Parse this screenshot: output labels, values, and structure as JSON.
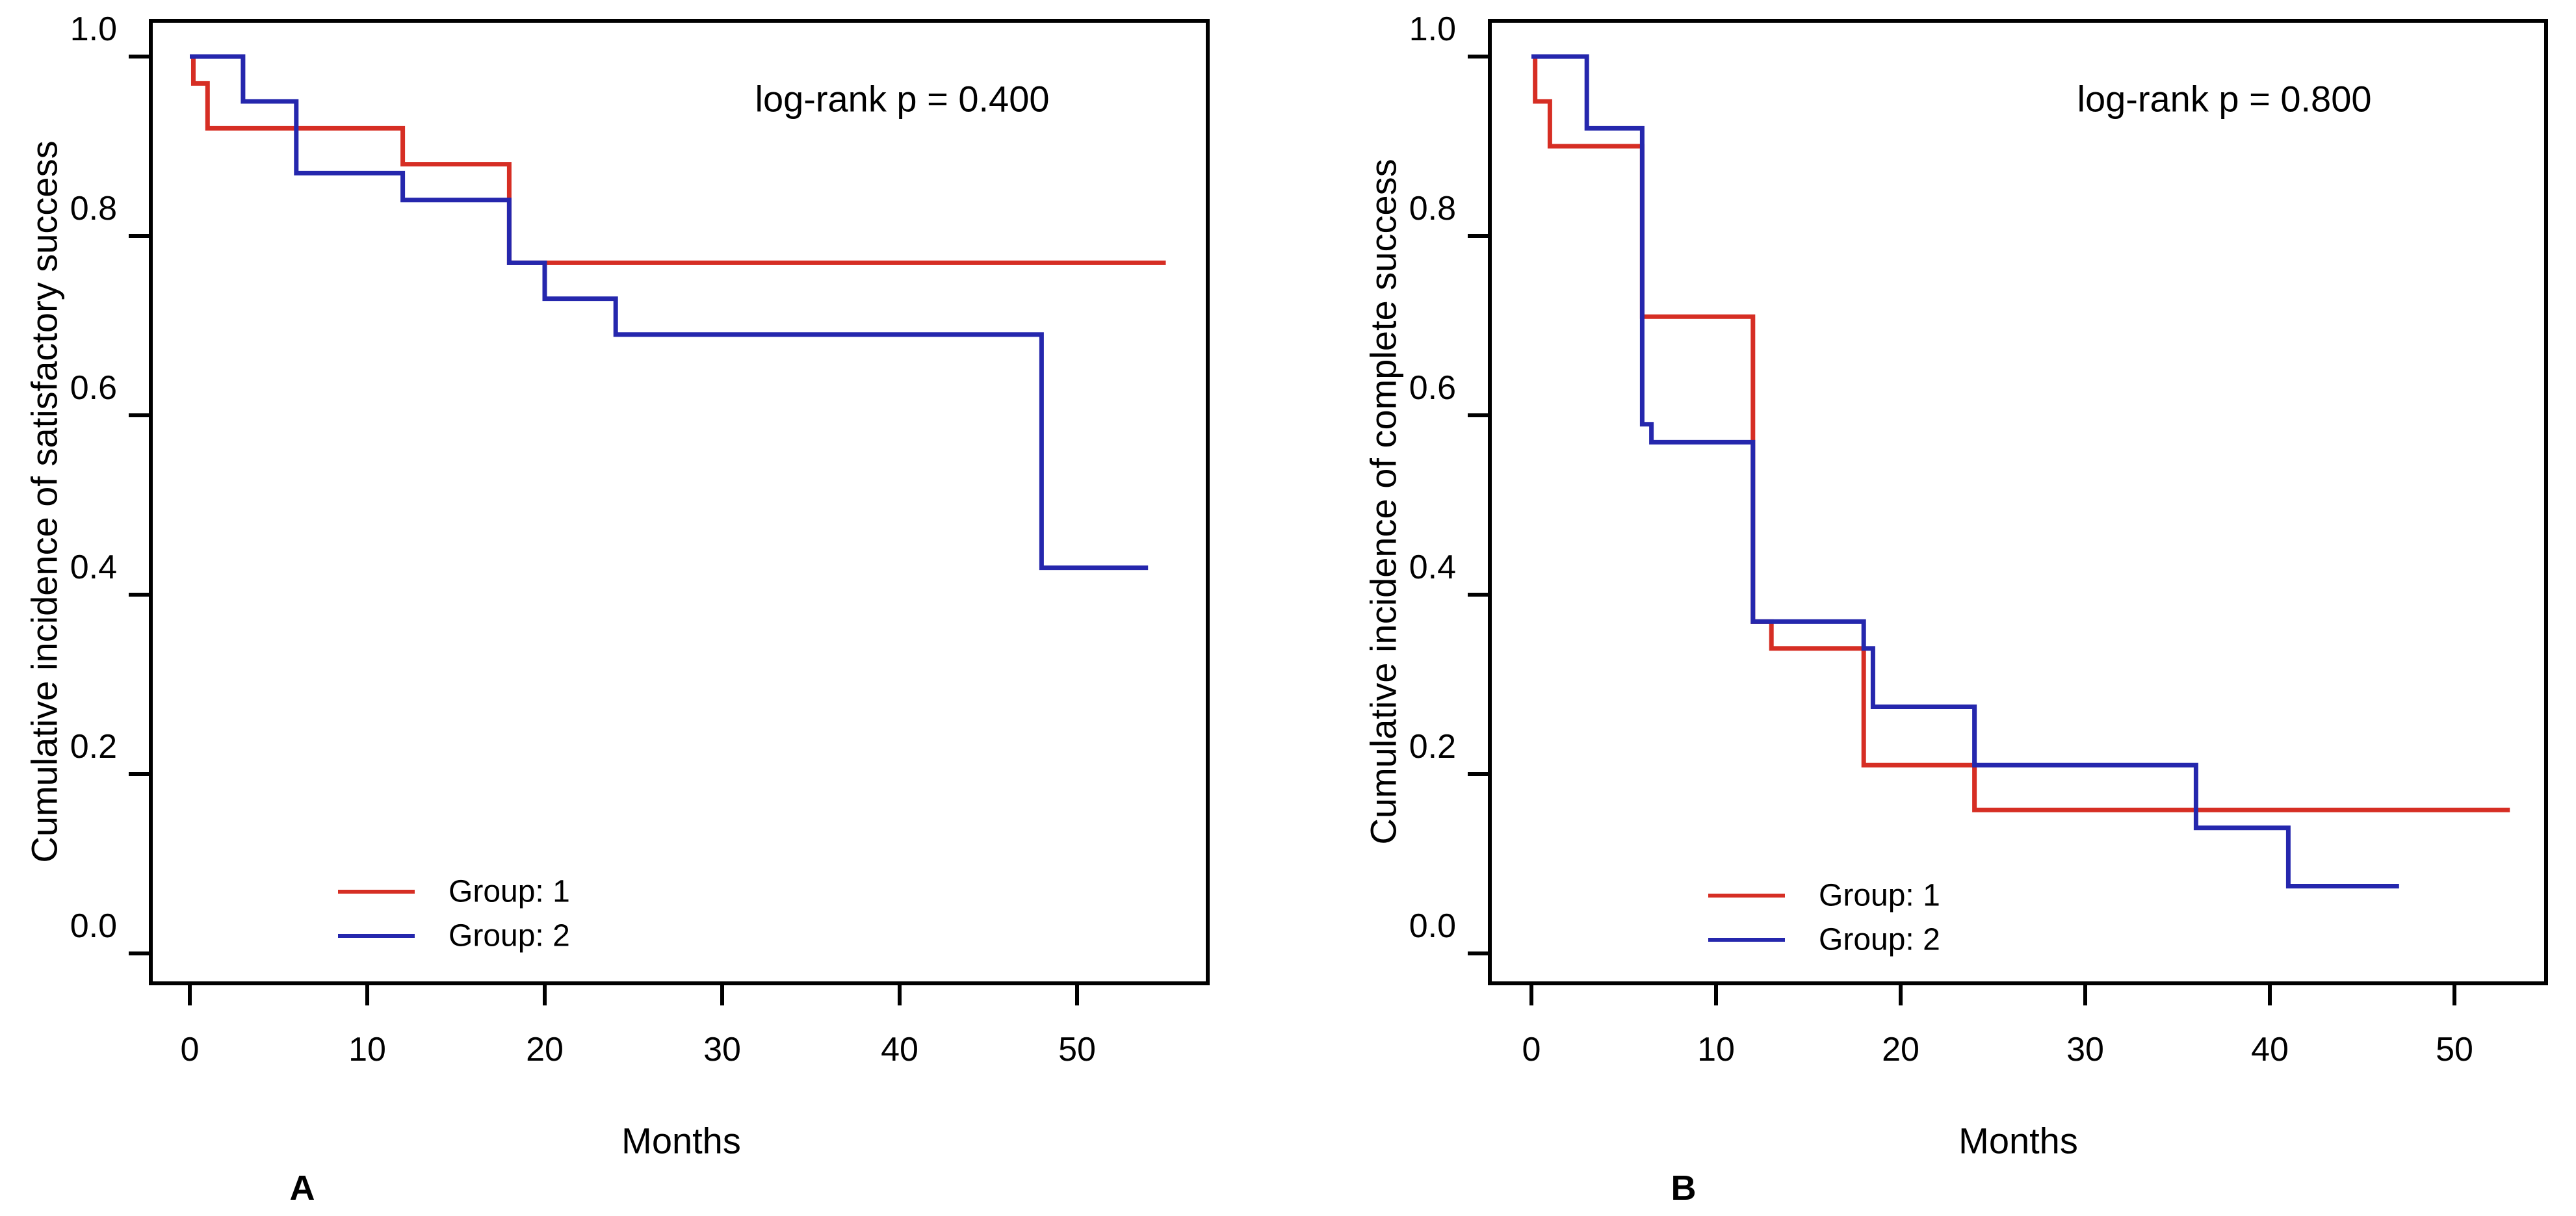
{
  "figure": {
    "background": "#ffffff",
    "axis_color": "#000000",
    "text_color": "#000000",
    "group1_color": "#d62e24",
    "group2_color": "#2527ad"
  },
  "chart_data": [
    {
      "id": "A",
      "type": "line",
      "subtype": "step-cumulative-incidence",
      "panel_label": "A",
      "title": "",
      "xlabel": "Months",
      "ylabel": "Cumulative incidence of satisfactory success",
      "annotation": "log-rank p = 0.400",
      "xlim": [
        0,
        57
      ],
      "ylim": [
        0,
        1.04
      ],
      "x_ticks": [
        0,
        10,
        20,
        30,
        40,
        50
      ],
      "y_ticks": [
        1.0,
        0.8,
        0.6,
        0.4,
        0.2,
        0.0
      ],
      "grid": false,
      "legend_position": "lower-left-inside",
      "series": [
        {
          "name": "Group: 1",
          "color": "#d62e24",
          "follow_up_end_months": 55,
          "steps_months_value": [
            [
              0,
              1.0
            ],
            [
              0.2,
              0.97
            ],
            [
              1,
              0.92
            ],
            [
              12,
              0.88
            ],
            [
              18,
              0.77
            ]
          ]
        },
        {
          "name": "Group: 2",
          "color": "#2527ad",
          "follow_up_end_months": 54,
          "steps_months_value": [
            [
              0,
              1.0
            ],
            [
              3,
              0.95
            ],
            [
              6,
              0.87
            ],
            [
              12,
              0.84
            ],
            [
              18,
              0.77
            ],
            [
              20,
              0.73
            ],
            [
              24,
              0.69
            ],
            [
              48,
              0.43
            ]
          ]
        }
      ]
    },
    {
      "id": "B",
      "type": "line",
      "subtype": "step-cumulative-incidence",
      "panel_label": "B",
      "title": "",
      "xlabel": "Months",
      "ylabel": "Cumulative incidence of complete success",
      "annotation": "log-rank p = 0.800",
      "xlim": [
        0,
        57
      ],
      "ylim": [
        0,
        1.04
      ],
      "x_ticks": [
        0,
        10,
        20,
        30,
        40,
        50
      ],
      "y_ticks": [
        1.0,
        0.8,
        0.6,
        0.4,
        0.2,
        0.0
      ],
      "grid": false,
      "legend_position": "lower-left-inside",
      "series": [
        {
          "name": "Group: 1",
          "color": "#d62e24",
          "follow_up_end_months": 53,
          "steps_months_value": [
            [
              0,
              1.0
            ],
            [
              0.2,
              0.95
            ],
            [
              1,
              0.9
            ],
            [
              6,
              0.71
            ],
            [
              12,
              0.37
            ],
            [
              13,
              0.34
            ],
            [
              18,
              0.21
            ],
            [
              24,
              0.16
            ]
          ]
        },
        {
          "name": "Group: 2",
          "color": "#2527ad",
          "follow_up_end_months": 47,
          "steps_months_value": [
            [
              0,
              1.0
            ],
            [
              3,
              0.92
            ],
            [
              6,
              0.59
            ],
            [
              6.5,
              0.57
            ],
            [
              12,
              0.37
            ],
            [
              18,
              0.34
            ],
            [
              18.5,
              0.275
            ],
            [
              24,
              0.21
            ],
            [
              36,
              0.14
            ],
            [
              41,
              0.075
            ]
          ]
        }
      ]
    }
  ]
}
